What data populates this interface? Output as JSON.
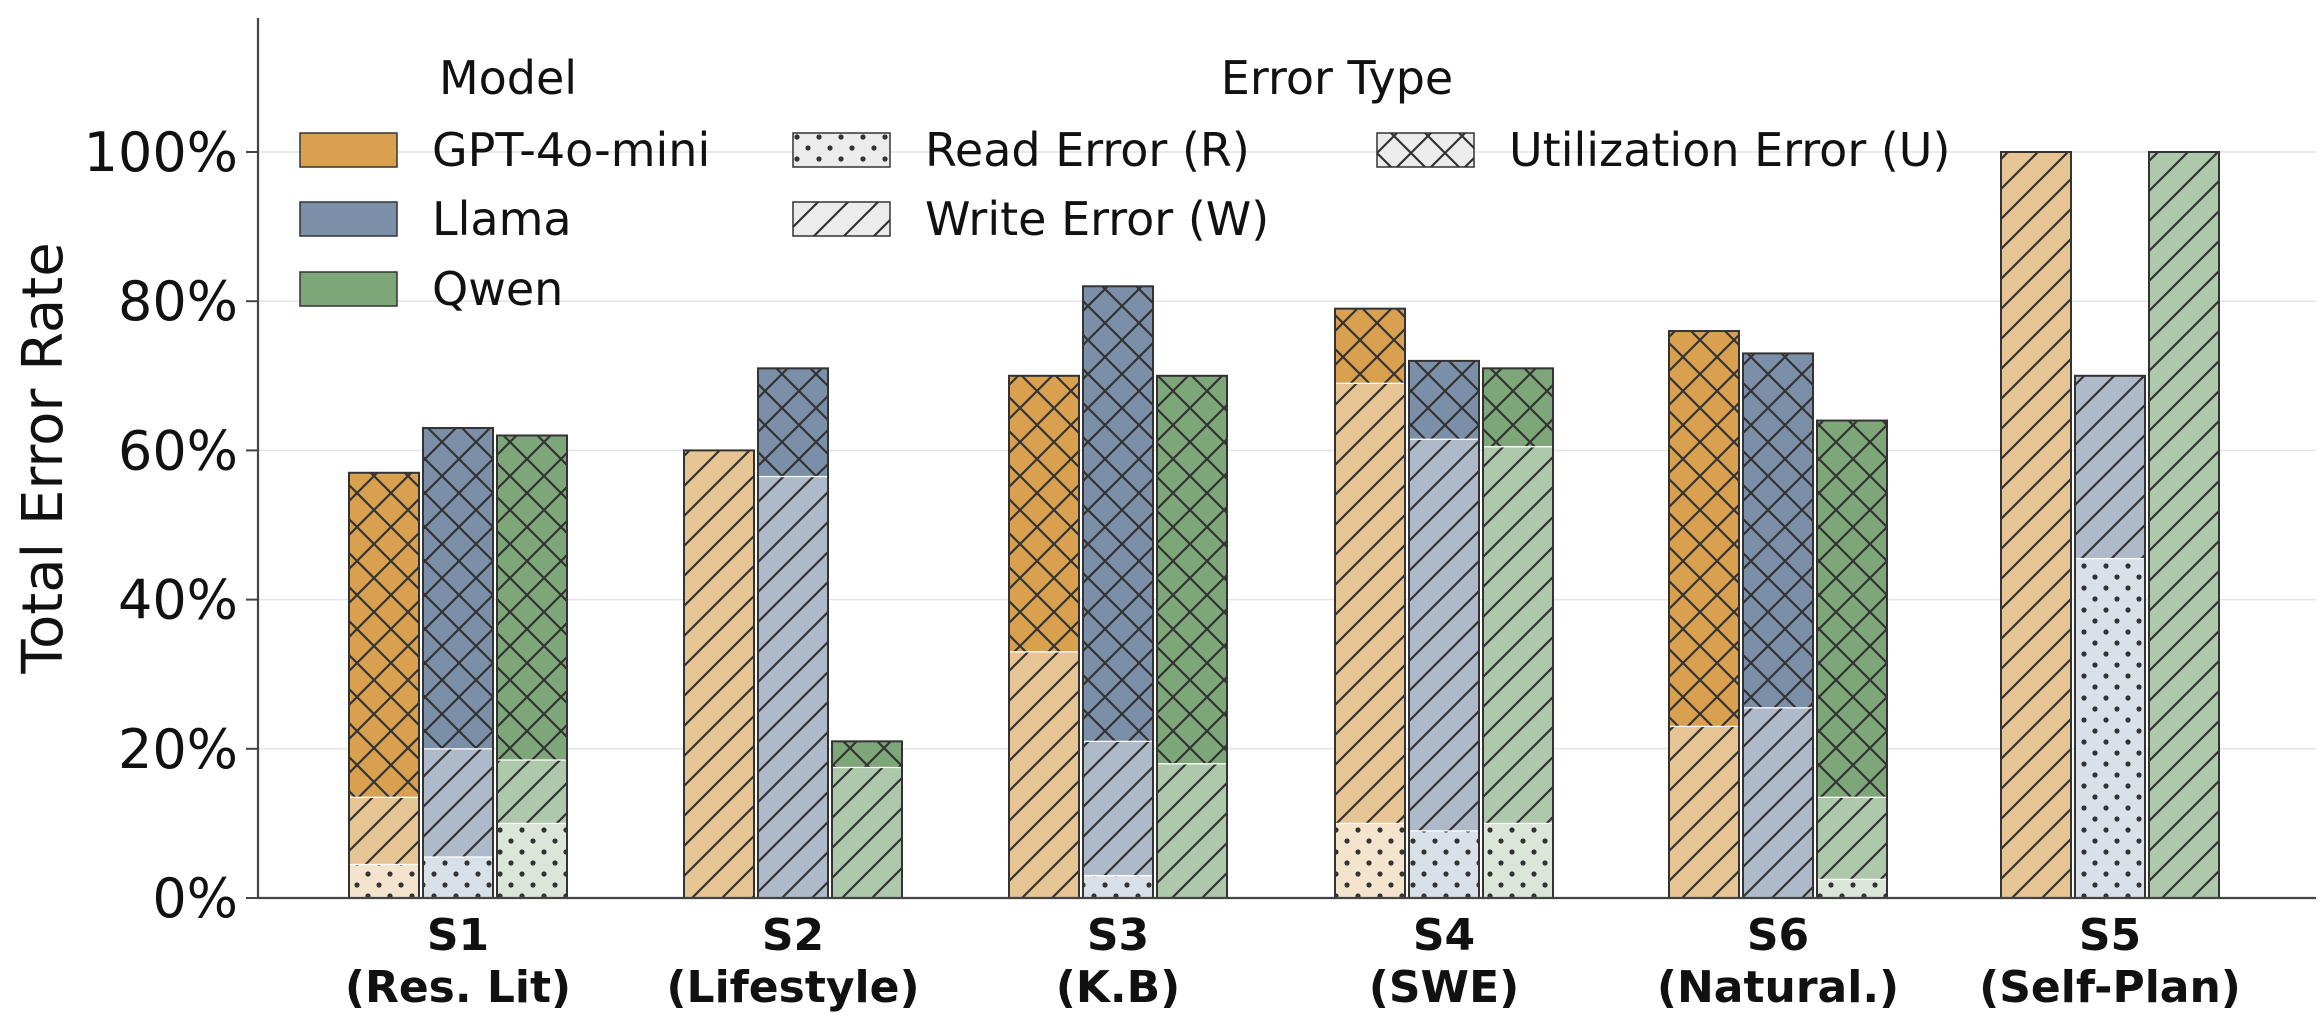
{
  "chart_data": {
    "type": "bar",
    "stacked": true,
    "grouped": true,
    "ylabel": "Total Error Rate",
    "ylim": [
      0,
      100
    ],
    "yticks": [
      "0%",
      "20%",
      "40%",
      "60%",
      "80%",
      "100%"
    ],
    "grid": "horizontal",
    "categories": [
      {
        "code": "S1",
        "name": "(Res. Lit)"
      },
      {
        "code": "S2",
        "name": "(Lifestyle)"
      },
      {
        "code": "S3",
        "name": "(K.B)"
      },
      {
        "code": "S4",
        "name": "(SWE)"
      },
      {
        "code": "S6",
        "name": "(Natural.)"
      },
      {
        "code": "S5",
        "name": "(Self-Plan)"
      }
    ],
    "series": [
      {
        "name": "GPT-4o-mini",
        "color": "#D9A050",
        "read": [
          4.5,
          0,
          0,
          10,
          0,
          0
        ],
        "write": [
          9,
          60,
          33,
          59,
          23,
          100
        ],
        "utilization": [
          43.5,
          0,
          37,
          10,
          53,
          0
        ]
      },
      {
        "name": "Llama",
        "color": "#7C8FA8",
        "read": [
          5.5,
          0,
          3,
          9,
          0,
          45.5
        ],
        "write": [
          14.5,
          56.5,
          18,
          52.5,
          25.5,
          24.5
        ],
        "utilization": [
          43,
          14.5,
          61,
          10.5,
          47.5,
          0
        ]
      },
      {
        "name": "Qwen",
        "color": "#7DA679",
        "read": [
          10,
          0,
          0,
          10,
          2.5,
          0
        ],
        "write": [
          8.5,
          17.5,
          18,
          50.5,
          11,
          100
        ],
        "utilization": [
          43.5,
          3.5,
          52,
          10.5,
          50.5,
          0
        ]
      }
    ],
    "legend": {
      "placement": "top-left",
      "model_title": "Model",
      "type_title": "Error Type",
      "models": [
        "GPT-4o-mini",
        "Llama",
        "Qwen"
      ],
      "error_types": [
        {
          "key": "read",
          "label": "Read Error (R)",
          "pattern": "dots"
        },
        {
          "key": "write",
          "label": "Write Error (W)",
          "pattern": "diagonal"
        },
        {
          "key": "utilization",
          "label": "Utilization Error (U)",
          "pattern": "crosshatch"
        }
      ]
    }
  }
}
